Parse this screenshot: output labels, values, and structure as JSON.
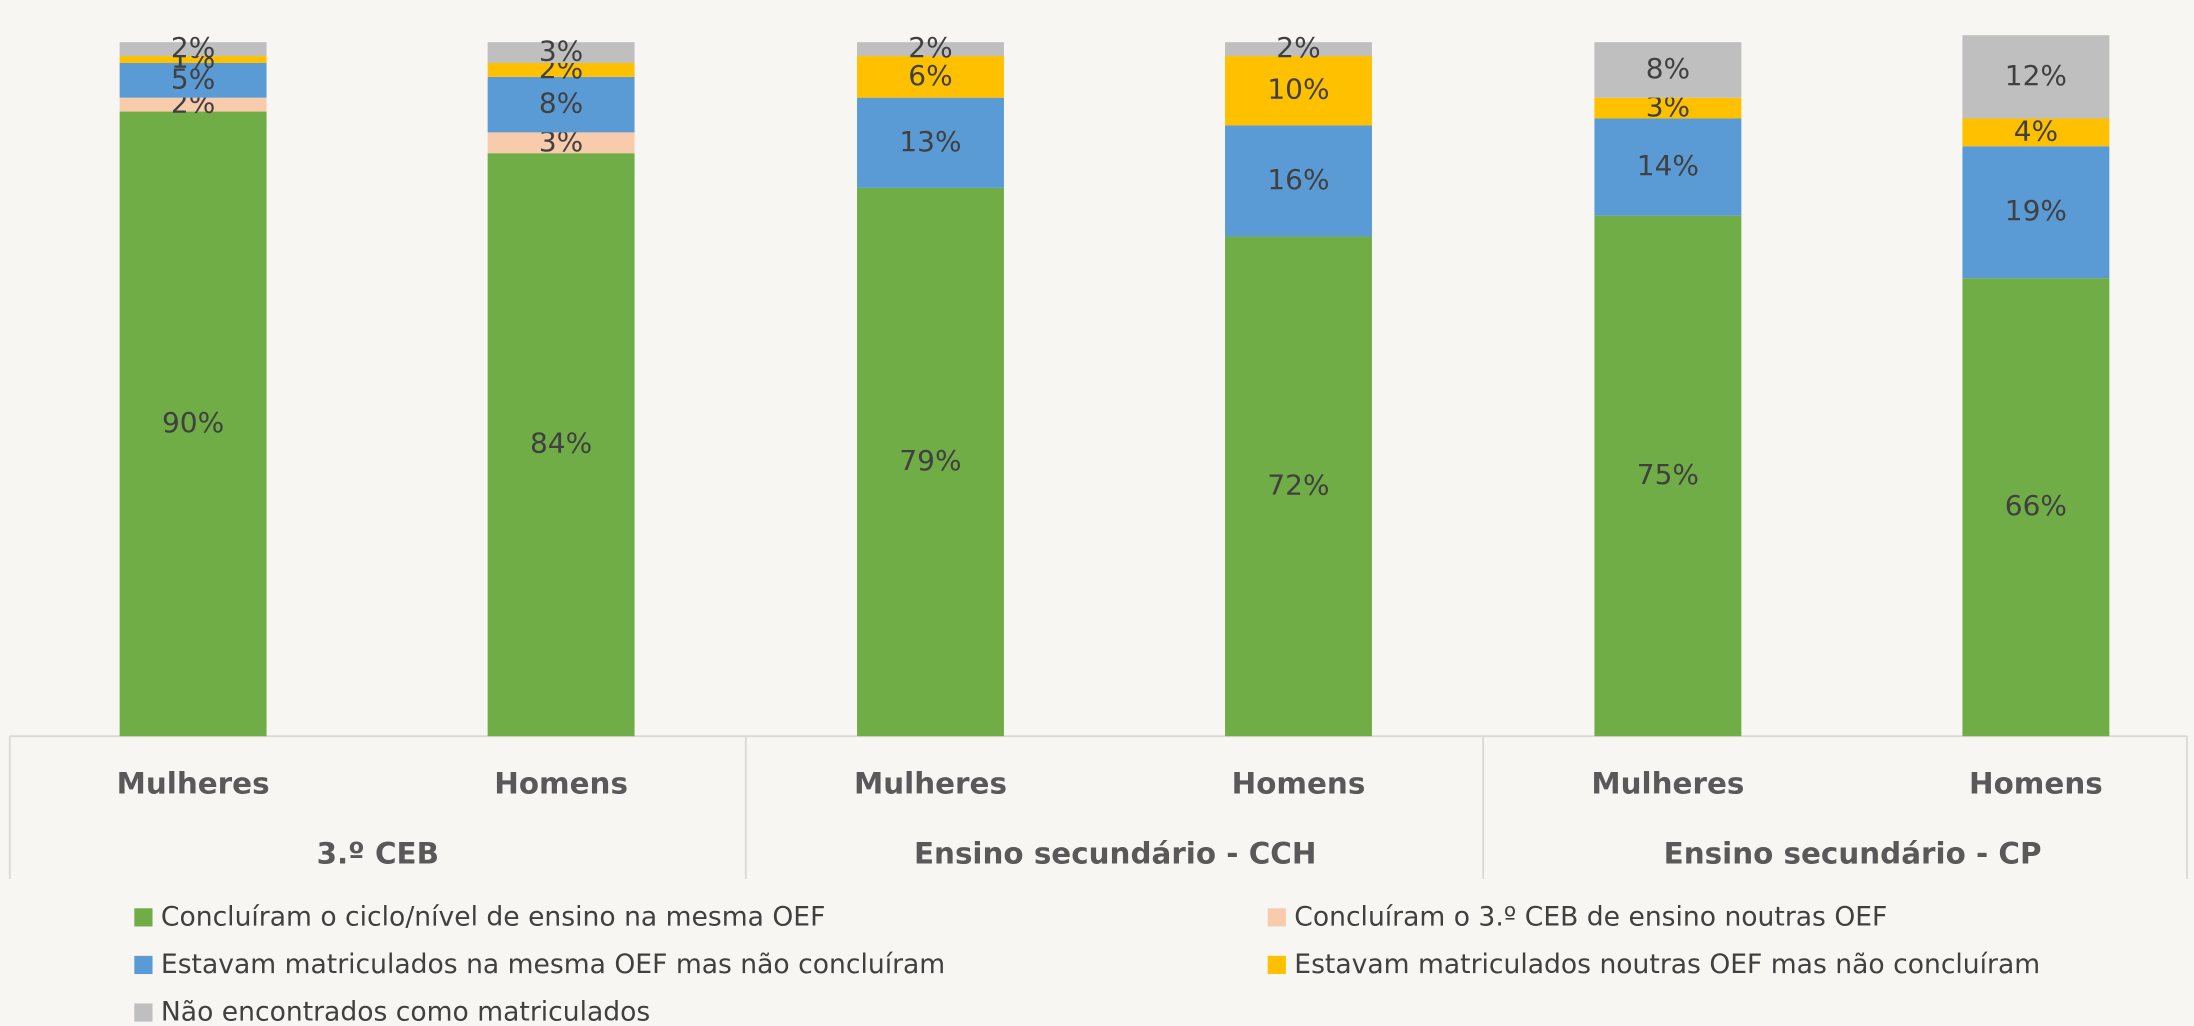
{
  "chart_data": {
    "type": "stacked_bar",
    "categories": [
      "Mulheres",
      "Homens",
      "Mulheres",
      "Homens",
      "Mulheres",
      "Homens"
    ],
    "groups": [
      "3.º CEB",
      "Ensino secundário - CCH",
      "Ensino secundário - CP"
    ],
    "ylim": [
      0,
      100
    ],
    "series": [
      {
        "name": "Concluíram o ciclo/nível de ensino na mesma OEF",
        "color": "#70ad47",
        "values": [
          90,
          84,
          79,
          72,
          75,
          66
        ],
        "value_labels": [
          "90%",
          "84%",
          "79%",
          "72%",
          "75%",
          "66%"
        ]
      },
      {
        "name": "Concluíram o 3.º CEB de ensino noutras OEF",
        "color": "#f8cbad",
        "values": [
          2,
          3,
          0,
          0,
          0,
          0
        ],
        "value_labels": [
          "2%",
          "3%",
          null,
          null,
          null,
          null
        ]
      },
      {
        "name": "Estavam matriculados na mesma OEF mas não concluíram",
        "color": "#5b9bd5",
        "values": [
          5,
          8,
          13,
          16,
          14,
          19
        ],
        "value_labels": [
          "5%",
          "8%",
          "13%",
          "16%",
          "14%",
          "19%"
        ]
      },
      {
        "name": "Estavam matriculados noutras OEF mas não concluíram",
        "color": "#ffc000",
        "values": [
          1,
          2,
          6,
          10,
          3,
          4
        ],
        "value_labels": [
          "1%",
          "2%",
          "6%",
          "10%",
          "3%",
          "4%"
        ]
      },
      {
        "name": "Não encontrados como matriculados",
        "color": "#bfbfbf",
        "values": [
          2,
          3,
          2,
          2,
          8,
          12
        ],
        "value_labels": [
          "2%",
          "3%",
          "2%",
          "2%",
          "8%",
          "12%"
        ]
      }
    ]
  }
}
